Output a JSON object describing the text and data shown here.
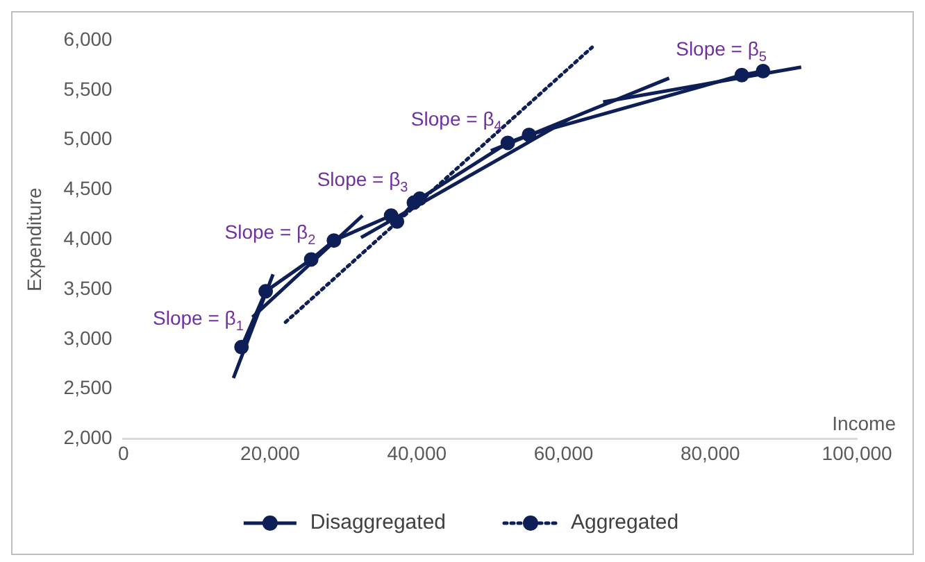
{
  "chart_data": {
    "type": "line",
    "xlabel": "Income",
    "ylabel": "Expenditure",
    "xlim": [
      0,
      100000
    ],
    "xticks": [
      {
        "value": 0,
        "label": "0"
      },
      {
        "value": 20000,
        "label": "20,000"
      },
      {
        "value": 40000,
        "label": "40,000"
      },
      {
        "value": 60000,
        "label": "60,000"
      },
      {
        "value": 80000,
        "label": "80,000"
      },
      {
        "value": 100000,
        "label": "100,000"
      }
    ],
    "ylim": [
      2000,
      6000
    ],
    "yticks": [
      {
        "value": 2000,
        "label": "2,000"
      },
      {
        "value": 2500,
        "label": "2,500"
      },
      {
        "value": 3000,
        "label": "3,000"
      },
      {
        "value": 3500,
        "label": "3,500"
      },
      {
        "value": 4000,
        "label": "4,000"
      },
      {
        "value": 4500,
        "label": "4,500"
      },
      {
        "value": 5000,
        "label": "5,000"
      },
      {
        "value": 5500,
        "label": "5,500"
      },
      {
        "value": 6000,
        "label": "6,000"
      }
    ],
    "grid": false,
    "legend": "bottom",
    "series": [
      {
        "name": "Disaggregated",
        "color": "#0d1f56",
        "marker": "circle",
        "line_style": "solid",
        "x": [
          16100,
          19400,
          25600,
          28700,
          36500,
          37300,
          39600,
          40400,
          52400,
          55300,
          84300,
          87200
        ],
        "values": [
          2920,
          3480,
          3800,
          3990,
          4240,
          4180,
          4370,
          4410,
          4970,
          5050,
          5650,
          5690
        ]
      },
      {
        "name": "Aggregated",
        "color": "#0d1f56",
        "marker": "none",
        "line_style": "dotted",
        "x": [
          22100,
          63900
        ],
        "values": [
          3170,
          5930
        ]
      },
      {
        "color": "#0d1f56",
        "marker": "none",
        "line_style": "solid",
        "x": [
          15000,
          20400
        ],
        "values": [
          2610,
          3650
        ]
      },
      {
        "color": "#0d1f56",
        "marker": "none",
        "line_style": "solid",
        "x": [
          17600,
          32600
        ],
        "values": [
          3220,
          4240
        ]
      },
      {
        "color": "#0d1f56",
        "marker": "none",
        "line_style": "solid",
        "x": [
          32400,
          60800
        ],
        "values": [
          4020,
          5210
        ]
      },
      {
        "color": "#0d1f56",
        "marker": "none",
        "line_style": "solid",
        "x": [
          50100,
          74400
        ],
        "values": [
          4890,
          5620
        ]
      },
      {
        "color": "#0d1f56",
        "marker": "none",
        "line_style": "solid",
        "x": [
          65400,
          92400
        ],
        "values": [
          5380,
          5730
        ]
      }
    ],
    "annotations": [
      "Slope = β$_{1}$",
      "Slope = β$_{2}$",
      "Slope = β$_{3}$",
      "Slope = β$_{4}$",
      "Slope = β$_{5}$"
    ]
  }
}
